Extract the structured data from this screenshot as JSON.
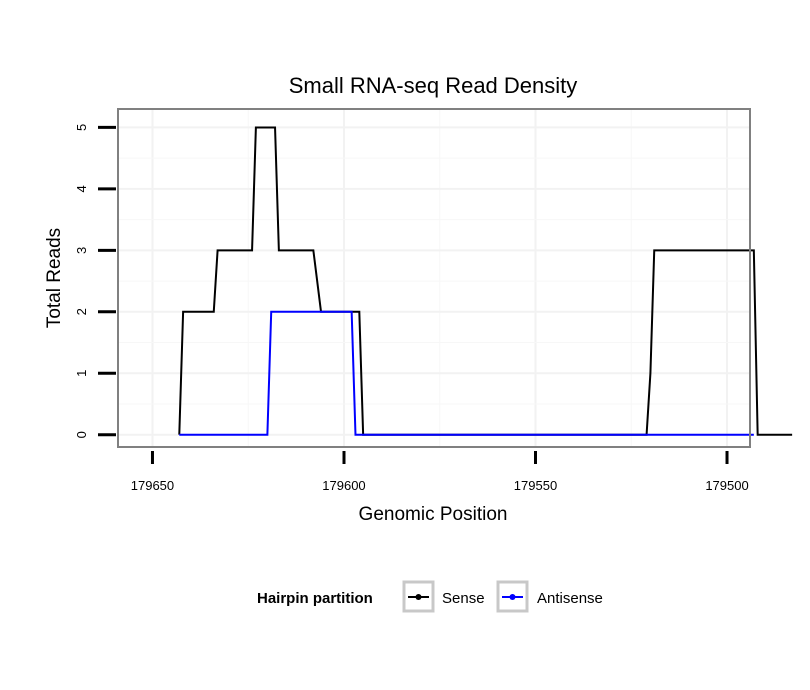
{
  "chart_data": {
    "type": "line",
    "title": "Small RNA-seq Read Density",
    "xlabel": "Genomic Position",
    "ylabel": "Total Reads",
    "x_reversed": true,
    "xlim": [
      179659,
      179494
    ],
    "ylim": [
      -0.2,
      5.3
    ],
    "x_ticks": [
      179650,
      179600,
      179550,
      179500
    ],
    "x_tick_labels": [
      "179650",
      "179600",
      "179550",
      "179500"
    ],
    "y_ticks": [
      0,
      1,
      2,
      3,
      4,
      5
    ],
    "y_tick_labels": [
      "0",
      "1",
      "2",
      "3",
      "4",
      "5"
    ],
    "grid": true,
    "legend": {
      "title": "Hairpin partition",
      "position": "bottom",
      "entries": [
        "Sense",
        "Antisense"
      ]
    },
    "series": [
      {
        "name": "Sense",
        "color": "#000000",
        "points": [
          [
            179643,
            0
          ],
          [
            179642,
            2
          ],
          [
            179634,
            2
          ],
          [
            179633,
            3
          ],
          [
            179624,
            3
          ],
          [
            179623,
            5
          ],
          [
            179618,
            5
          ],
          [
            179617,
            3
          ],
          [
            179608,
            3
          ],
          [
            179606,
            2
          ],
          [
            179597,
            2
          ],
          [
            179596,
            2
          ],
          [
            179595,
            0
          ],
          [
            179521,
            0
          ],
          [
            179520,
            1
          ],
          [
            179519,
            3
          ],
          [
            179493,
            3
          ],
          [
            179492,
            0
          ],
          [
            179483,
            0
          ]
        ]
      },
      {
        "name": "Antisense",
        "color": "#0000ff",
        "points": [
          [
            179643,
            0
          ],
          [
            179620,
            0
          ],
          [
            179619,
            2
          ],
          [
            179598,
            2
          ],
          [
            179597,
            0
          ],
          [
            179493,
            0
          ]
        ]
      }
    ]
  }
}
